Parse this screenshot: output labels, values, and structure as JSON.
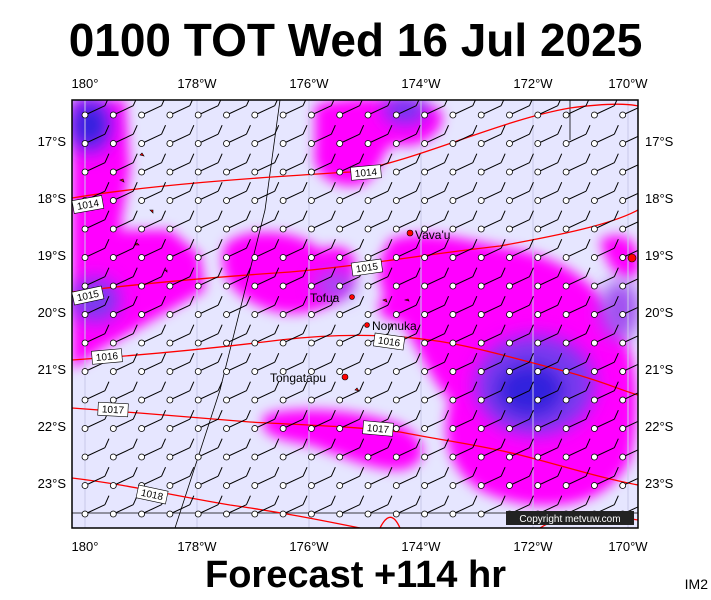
{
  "header": {
    "title": "0100 TOT Wed 16 Jul 2025"
  },
  "footer": {
    "forecast": "Forecast +114 hr",
    "code": "IM2"
  },
  "map": {
    "lon_labels": [
      "180°",
      "178°W",
      "176°W",
      "174°W",
      "172°W",
      "170°W"
    ],
    "lat_labels": [
      "17°S",
      "18°S",
      "19°S",
      "20°S",
      "21°S",
      "22°S",
      "23°S"
    ],
    "places": [
      {
        "name": "Vava'u",
        "lon": -174.0,
        "lat": -18.65
      },
      {
        "name": "Tofua",
        "lon": -175.05,
        "lat": -19.75
      },
      {
        "name": "Nomuka",
        "lon": -174.8,
        "lat": -20.25
      },
      {
        "name": "Tongatapu",
        "lon": -175.2,
        "lat": -21.15
      }
    ],
    "isobars": [
      {
        "label": "1014"
      },
      {
        "label": "1014"
      },
      {
        "label": "1015"
      },
      {
        "label": "1015"
      },
      {
        "label": "1016"
      },
      {
        "label": "1016"
      },
      {
        "label": "1017"
      },
      {
        "label": "1017"
      },
      {
        "label": "1018"
      }
    ],
    "copyright": "Copyright metvuw.com",
    "colors": {
      "background": "#e6e6ff",
      "rain_light": "#ff00ff",
      "rain_heavy": "#2222cc",
      "isobar": "#ff0000",
      "land": "#ff0000"
    }
  }
}
